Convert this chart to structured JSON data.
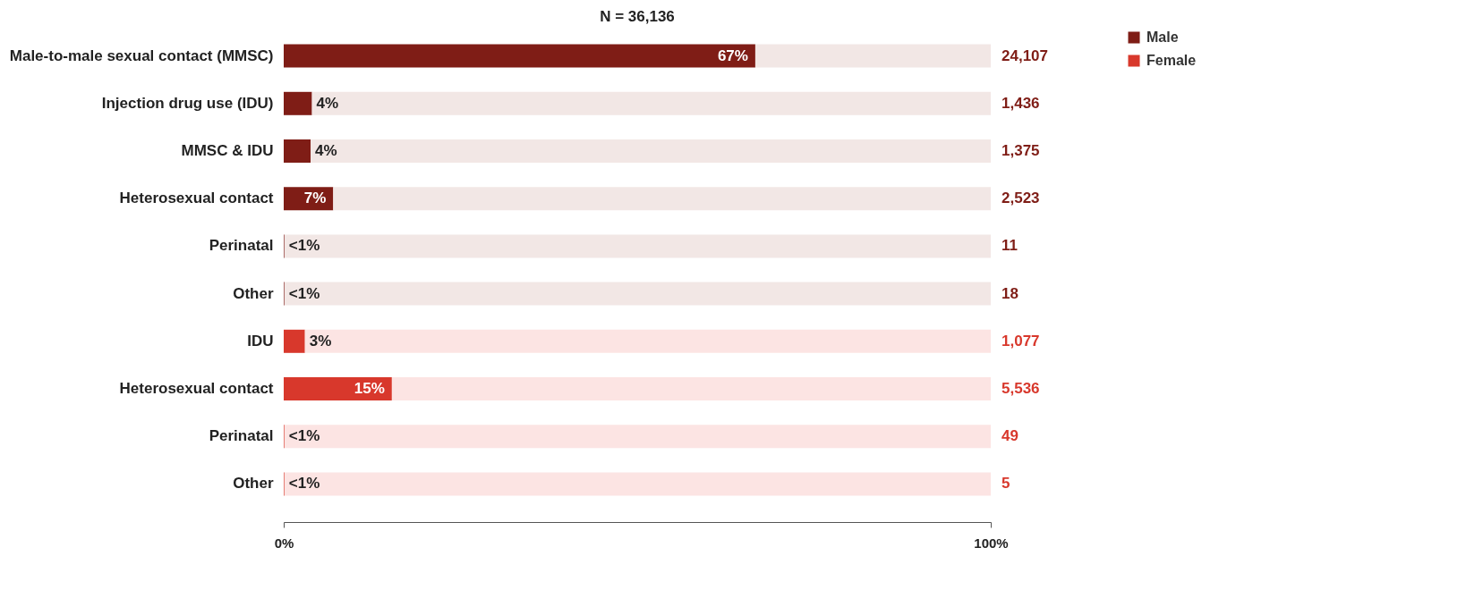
{
  "chart_data": {
    "type": "bar",
    "orientation": "horizontal",
    "stacked": true,
    "title": "N = 36,136",
    "categories": [
      "Male-to-male sexual contact (MMSC)",
      "Injection drug use (IDU)",
      "MMSC & IDU",
      "Heterosexual contact",
      "Perinatal",
      "Other",
      "IDU",
      "Heterosexual contact",
      "Perinatal",
      "Other"
    ],
    "series": [
      {
        "name": "Male",
        "color": "#7f1d16",
        "values": [
          66.7,
          4.0,
          3.8,
          7.0,
          0.1,
          0.1,
          null,
          null,
          null,
          null
        ],
        "value_labels": [
          "67%",
          "4%",
          "4%",
          "7%",
          "<1%",
          "<1%",
          null,
          null,
          null,
          null
        ]
      },
      {
        "name": "Female",
        "color": "#d8382c",
        "values": [
          null,
          null,
          null,
          null,
          null,
          null,
          3.0,
          15.3,
          0.1,
          0.1
        ],
        "value_labels": [
          null,
          null,
          null,
          null,
          null,
          null,
          "3%",
          "15%",
          "<1%",
          "<1%"
        ]
      },
      {
        "colors": [
          "#f2e7e5",
          "#f2e7e5",
          "#f2e7e5",
          "#f2e7e5",
          "#f2e7e5",
          "#f2e7e5",
          "#fce4e3",
          "#fce4e3",
          "#fce4e3",
          "#fce4e3"
        ],
        "values": [
          33.3,
          96.0,
          96.2,
          93.0,
          99.9,
          99.9,
          97.0,
          84.7,
          99.9,
          99.9
        ]
      }
    ],
    "annotations": [
      "24,107",
      "1,436",
      "1,375",
      "2,523",
      "11",
      "18",
      "1,077",
      "5,536",
      "49",
      "5"
    ],
    "xlim": [
      0,
      100
    ],
    "xticks": [
      {
        "value": 0,
        "label": "0%"
      },
      {
        "value": 100,
        "label": "100%"
      }
    ],
    "grid": false,
    "legend": "top right"
  }
}
